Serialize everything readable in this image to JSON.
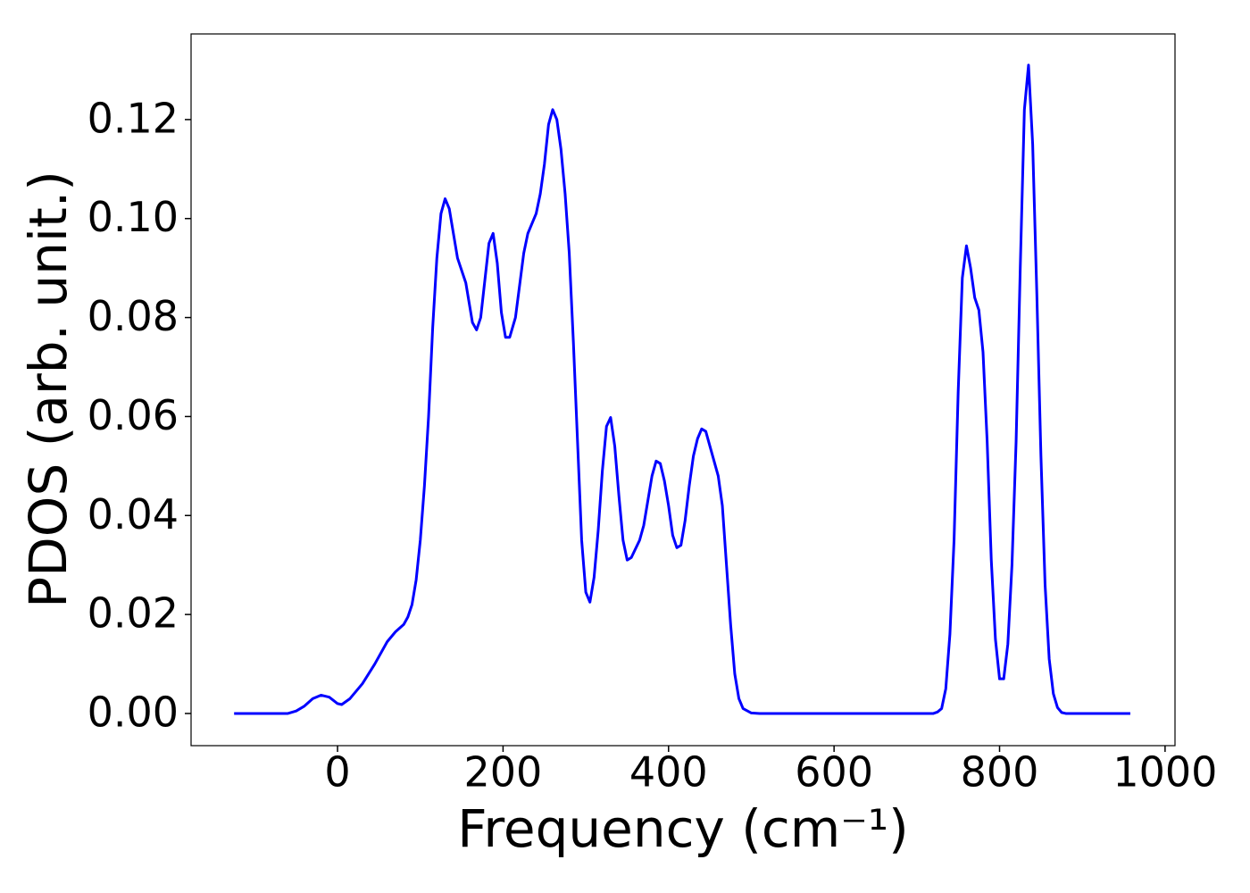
{
  "chart_data": {
    "type": "line",
    "xlabel": "Frequency (cm⁻¹)",
    "ylabel": "PDOS (arb. unit.)",
    "x": [
      -125,
      -60,
      -50,
      -40,
      -30,
      -20,
      -10,
      0,
      5,
      15,
      30,
      45,
      60,
      70,
      80,
      85,
      90,
      95,
      100,
      105,
      110,
      115,
      120,
      125,
      130,
      135,
      140,
      145,
      155,
      163,
      168,
      173,
      183,
      188,
      193,
      198,
      203,
      208,
      215,
      225,
      230,
      240,
      245,
      250,
      255,
      260,
      265,
      270,
      275,
      280,
      285,
      290,
      295,
      300,
      305,
      310,
      315,
      320,
      325,
      330,
      335,
      340,
      345,
      350,
      355,
      365,
      370,
      375,
      380,
      385,
      390,
      395,
      400,
      405,
      410,
      415,
      420,
      425,
      430,
      435,
      440,
      445,
      450,
      455,
      460,
      465,
      470,
      475,
      480,
      485,
      490,
      500,
      510,
      720,
      725,
      730,
      735,
      740,
      745,
      750,
      755,
      760,
      765,
      770,
      775,
      780,
      785,
      790,
      795,
      800,
      805,
      810,
      815,
      820,
      825,
      830,
      835,
      840,
      845,
      850,
      855,
      860,
      865,
      870,
      875,
      880,
      958
    ],
    "series": [
      {
        "name": "PDOS",
        "color": "#0000ff",
        "values": [
          0,
          0,
          0.0005,
          0.0015,
          0.003,
          0.0037,
          0.0033,
          0.002,
          0.0018,
          0.003,
          0.006,
          0.01,
          0.0145,
          0.0165,
          0.018,
          0.0195,
          0.022,
          0.027,
          0.035,
          0.046,
          0.06,
          0.078,
          0.092,
          0.101,
          0.104,
          0.102,
          0.097,
          0.092,
          0.087,
          0.079,
          0.0775,
          0.08,
          0.095,
          0.097,
          0.091,
          0.081,
          0.076,
          0.076,
          0.08,
          0.093,
          0.097,
          0.101,
          0.105,
          0.111,
          0.119,
          0.122,
          0.12,
          0.114,
          0.105,
          0.093,
          0.075,
          0.055,
          0.035,
          0.0245,
          0.0225,
          0.0275,
          0.037,
          0.049,
          0.058,
          0.0598,
          0.054,
          0.044,
          0.035,
          0.031,
          0.0315,
          0.035,
          0.038,
          0.043,
          0.048,
          0.051,
          0.0505,
          0.047,
          0.042,
          0.036,
          0.0335,
          0.034,
          0.039,
          0.046,
          0.052,
          0.0555,
          0.0575,
          0.057,
          0.054,
          0.051,
          0.048,
          0.042,
          0.03,
          0.018,
          0.008,
          0.003,
          0.001,
          0.0001,
          0,
          0,
          0.0003,
          0.001,
          0.005,
          0.016,
          0.035,
          0.065,
          0.088,
          0.0945,
          0.09,
          0.084,
          0.0815,
          0.073,
          0.055,
          0.031,
          0.015,
          0.007,
          0.007,
          0.014,
          0.03,
          0.055,
          0.09,
          0.122,
          0.131,
          0.115,
          0.085,
          0.052,
          0.026,
          0.011,
          0.004,
          0.0012,
          0.0002,
          0,
          0
        ]
      }
    ],
    "xlim": [
      -177,
      1012
    ],
    "ylim": [
      -0.0065,
      0.1373
    ],
    "xticks": [
      0,
      200,
      400,
      600,
      800,
      1000
    ],
    "yticks": [
      {
        "value": 0,
        "label": "0.00"
      },
      {
        "value": 0.02,
        "label": "0.02"
      },
      {
        "value": 0.04,
        "label": "0.04"
      },
      {
        "value": 0.06,
        "label": "0.06"
      },
      {
        "value": 0.08,
        "label": "0.08"
      },
      {
        "value": 0.1,
        "label": "0.10"
      },
      {
        "value": 0.12,
        "label": "0.12"
      }
    ],
    "grid": false
  }
}
